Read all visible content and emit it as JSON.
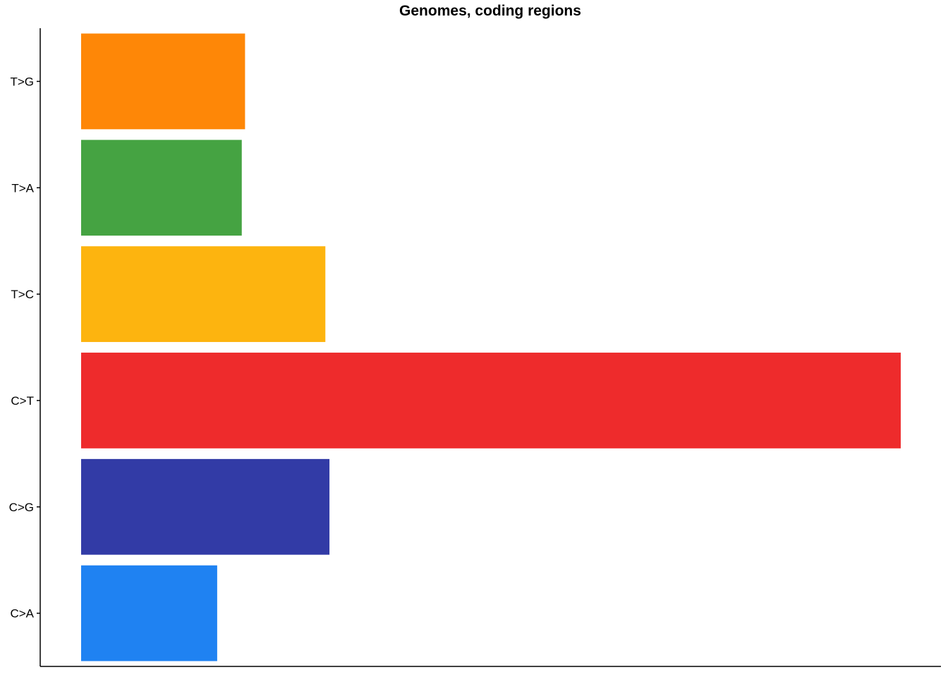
{
  "chart_data": {
    "type": "bar",
    "orientation": "horizontal",
    "title": "Genomes, coding regions",
    "xlabel": "",
    "ylabel": "",
    "categories": [
      "C>A",
      "C>G",
      "C>T",
      "T>C",
      "T>A",
      "T>G"
    ],
    "values": [
      16.6,
      30.3,
      100,
      29.8,
      19.6,
      20.0
    ],
    "xlim": [
      0,
      105
    ],
    "grid": false,
    "legend": "none",
    "colors": [
      "#1f82f2",
      "#323ba6",
      "#ee2b2c",
      "#fdb40f",
      "#45a342",
      "#fe8707"
    ]
  }
}
